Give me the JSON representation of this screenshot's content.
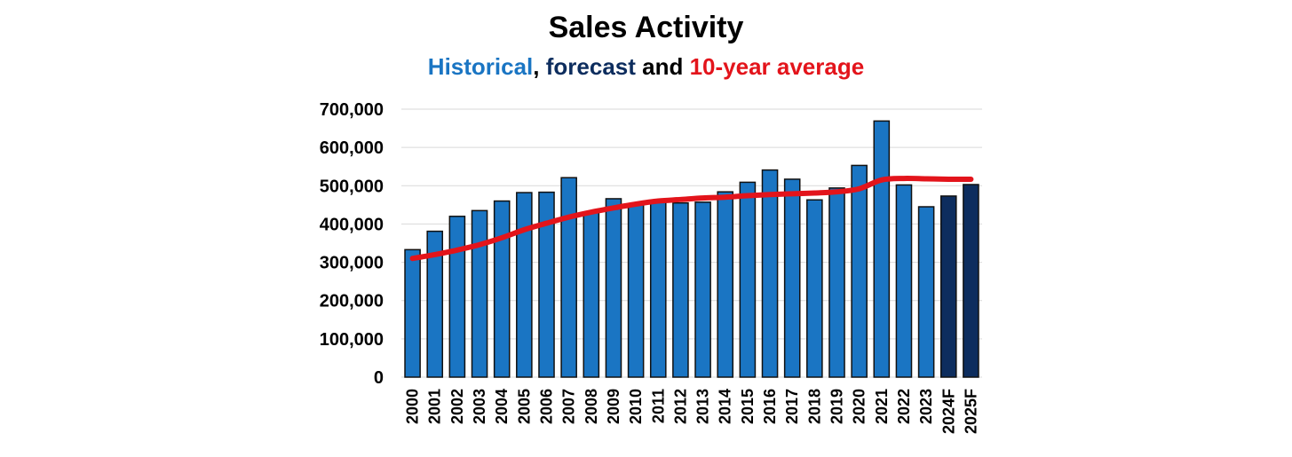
{
  "chart_data": {
    "type": "bar",
    "title": "Sales Activity",
    "subtitle": {
      "historical": "Historical",
      "sep1": ", ",
      "forecast": "forecast",
      "sep2": " and ",
      "average": "10-year average"
    },
    "categories": [
      "2000",
      "2001",
      "2002",
      "2003",
      "2004",
      "2005",
      "2006",
      "2007",
      "2008",
      "2009",
      "2010",
      "2011",
      "2012",
      "2013",
      "2014",
      "2015",
      "2016",
      "2017",
      "2018",
      "2019",
      "2020",
      "2021",
      "2022",
      "2023",
      "2024F",
      "2025F"
    ],
    "series": [
      {
        "name": "Historical",
        "type": "bar",
        "color": "#1a75c3",
        "values": [
          333000,
          381000,
          420000,
          435000,
          460000,
          482000,
          483000,
          521000,
          430000,
          466000,
          450000,
          460000,
          455000,
          457000,
          484000,
          509000,
          541000,
          517000,
          463000,
          494000,
          553000,
          669000,
          502000,
          445000,
          null,
          null
        ]
      },
      {
        "name": "forecast",
        "type": "bar",
        "color": "#0d2d5e",
        "values": [
          null,
          null,
          null,
          null,
          null,
          null,
          null,
          null,
          null,
          null,
          null,
          null,
          null,
          null,
          null,
          null,
          null,
          null,
          null,
          null,
          null,
          null,
          null,
          null,
          473000,
          503000
        ]
      },
      {
        "name": "10-year average",
        "type": "line",
        "color": "#e3141b",
        "values": [
          310000,
          320000,
          332000,
          346000,
          364000,
          385000,
          402000,
          418000,
          431000,
          442000,
          452000,
          460000,
          464000,
          468000,
          470000,
          474000,
          477000,
          479000,
          481000,
          484000,
          492000,
          515000,
          519000,
          518000,
          517000,
          517000
        ]
      }
    ],
    "yticks": [
      "0",
      "100,000",
      "200,000",
      "300,000",
      "400,000",
      "500,000",
      "600,000",
      "700,000"
    ],
    "ylim": [
      0,
      700000
    ],
    "xlabel": "",
    "ylabel": "",
    "grid": true,
    "legend": "none",
    "colors": {
      "historical_text": "#1a75c3",
      "forecast_text": "#0d2d5e",
      "average_text": "#e3141b",
      "separator_text": "#000000",
      "bar_border": "#111111",
      "grid": "#d9d9d9"
    }
  }
}
